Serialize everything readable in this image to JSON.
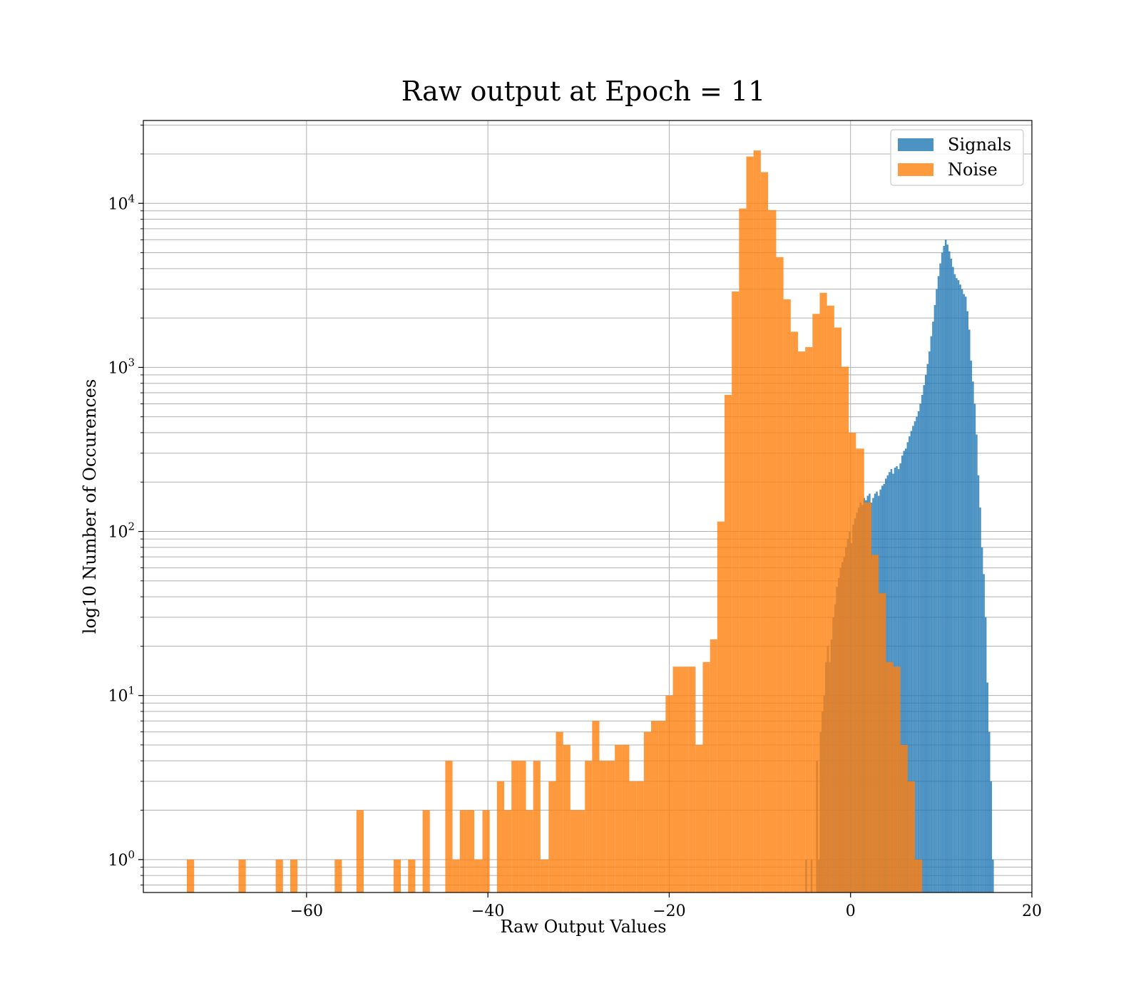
{
  "chart_data": {
    "type": "histogram",
    "title": "Raw output at Epoch = 11",
    "xlabel": "Raw Output Values",
    "ylabel": "log10 Number of Occurences",
    "xlim": [
      -78,
      20
    ],
    "ylim": [
      0.63,
      32000
    ],
    "yscale": "log",
    "grid": true,
    "legend_position": "top-right",
    "x_ticks": [
      {
        "value": -60,
        "label": "−60"
      },
      {
        "value": -40,
        "label": "−40"
      },
      {
        "value": -20,
        "label": "−20"
      },
      {
        "value": 0,
        "label": "0"
      },
      {
        "value": 20,
        "label": "20"
      }
    ],
    "y_ticks": [
      {
        "value": 1,
        "base": "10",
        "exp": "0"
      },
      {
        "value": 10,
        "base": "10",
        "exp": "1"
      },
      {
        "value": 100,
        "base": "10",
        "exp": "2"
      },
      {
        "value": 1000,
        "base": "10",
        "exp": "3"
      },
      {
        "value": 10000,
        "base": "10",
        "exp": "4"
      }
    ],
    "series": [
      {
        "name": "Signals",
        "color": "#1f77b4",
        "opacity": 0.8,
        "bins": [
          [
            -5.0,
            -4.8,
            1
          ],
          [
            -4.8,
            -4.6,
            0
          ],
          [
            -4.6,
            -4.4,
            0
          ],
          [
            -4.4,
            -4.2,
            1
          ],
          [
            -4.2,
            -4.0,
            0
          ],
          [
            -4.0,
            -3.8,
            0
          ],
          [
            -3.8,
            -3.6,
            4
          ],
          [
            -3.6,
            -3.4,
            1
          ],
          [
            -3.4,
            -3.2,
            6
          ],
          [
            -3.2,
            -3.0,
            8
          ],
          [
            -3.0,
            -2.8,
            10
          ],
          [
            -2.8,
            -2.6,
            16
          ],
          [
            -2.6,
            -2.4,
            20
          ],
          [
            -2.4,
            -2.2,
            16
          ],
          [
            -2.2,
            -2.0,
            22
          ],
          [
            -2.0,
            -1.8,
            30
          ],
          [
            -1.8,
            -1.6,
            36
          ],
          [
            -1.6,
            -1.4,
            46
          ],
          [
            -1.4,
            -1.2,
            52
          ],
          [
            -1.2,
            -1.0,
            60
          ],
          [
            -1.0,
            -0.8,
            65
          ],
          [
            -0.8,
            -0.6,
            70
          ],
          [
            -0.6,
            -0.4,
            80
          ],
          [
            -0.4,
            -0.2,
            90
          ],
          [
            -0.2,
            0.0,
            100
          ],
          [
            0.0,
            0.2,
            85
          ],
          [
            0.2,
            0.4,
            110
          ],
          [
            0.4,
            0.6,
            120
          ],
          [
            0.6,
            0.8,
            130
          ],
          [
            0.8,
            1.0,
            140
          ],
          [
            1.0,
            1.2,
            150
          ],
          [
            1.2,
            1.4,
            145
          ],
          [
            1.4,
            1.6,
            160
          ],
          [
            1.6,
            1.8,
            155
          ],
          [
            1.8,
            2.0,
            165
          ],
          [
            2.0,
            2.2,
            170
          ],
          [
            2.2,
            2.4,
            150
          ],
          [
            2.4,
            2.6,
            160
          ],
          [
            2.6,
            2.8,
            170
          ],
          [
            2.8,
            3.0,
            175
          ],
          [
            3.0,
            3.2,
            165
          ],
          [
            3.2,
            3.4,
            180
          ],
          [
            3.4,
            3.6,
            190
          ],
          [
            3.6,
            3.8,
            195
          ],
          [
            3.8,
            4.0,
            210
          ],
          [
            4.0,
            4.2,
            220
          ],
          [
            4.2,
            4.4,
            230
          ],
          [
            4.4,
            4.6,
            240
          ],
          [
            4.6,
            4.8,
            225
          ],
          [
            4.8,
            5.0,
            245
          ],
          [
            5.0,
            5.2,
            250
          ],
          [
            5.2,
            5.4,
            240
          ],
          [
            5.4,
            5.6,
            260
          ],
          [
            5.6,
            5.8,
            290
          ],
          [
            5.8,
            6.0,
            310
          ],
          [
            6.0,
            6.2,
            320
          ],
          [
            6.2,
            6.4,
            350
          ],
          [
            6.4,
            6.6,
            380
          ],
          [
            6.6,
            6.8,
            410
          ],
          [
            6.8,
            7.0,
            440
          ],
          [
            7.0,
            7.2,
            470
          ],
          [
            7.2,
            7.4,
            500
          ],
          [
            7.4,
            7.6,
            540
          ],
          [
            7.6,
            7.8,
            600
          ],
          [
            7.8,
            8.0,
            680
          ],
          [
            8.0,
            8.2,
            780
          ],
          [
            8.2,
            8.4,
            900
          ],
          [
            8.4,
            8.6,
            1050
          ],
          [
            8.6,
            8.8,
            1250
          ],
          [
            8.8,
            9.0,
            1550
          ],
          [
            9.0,
            9.2,
            1900
          ],
          [
            9.2,
            9.4,
            2400
          ],
          [
            9.4,
            9.6,
            3000
          ],
          [
            9.6,
            9.8,
            3600
          ],
          [
            9.8,
            10.0,
            4300
          ],
          [
            10.0,
            10.2,
            5000
          ],
          [
            10.2,
            10.4,
            5500
          ],
          [
            10.4,
            10.6,
            6000
          ],
          [
            10.6,
            10.8,
            5600
          ],
          [
            10.8,
            11.0,
            5100
          ],
          [
            11.0,
            11.2,
            4600
          ],
          [
            11.2,
            11.4,
            4100
          ],
          [
            11.4,
            11.6,
            3700
          ],
          [
            11.6,
            11.8,
            3500
          ],
          [
            11.8,
            12.0,
            3400
          ],
          [
            12.0,
            12.2,
            3200
          ],
          [
            12.2,
            12.4,
            3000
          ],
          [
            12.4,
            12.6,
            2800
          ],
          [
            12.6,
            12.8,
            2700
          ],
          [
            12.8,
            13.0,
            2200
          ],
          [
            13.0,
            13.2,
            1700
          ],
          [
            13.2,
            13.4,
            1100
          ],
          [
            13.4,
            13.6,
            820
          ],
          [
            13.6,
            13.8,
            600
          ],
          [
            13.8,
            14.0,
            390
          ],
          [
            14.0,
            14.2,
            220
          ],
          [
            14.2,
            14.4,
            140
          ],
          [
            14.4,
            14.6,
            80
          ],
          [
            14.6,
            14.8,
            55
          ],
          [
            14.8,
            15.0,
            30
          ],
          [
            15.0,
            15.2,
            12
          ],
          [
            15.2,
            15.4,
            6
          ],
          [
            15.4,
            15.6,
            3
          ],
          [
            15.6,
            15.8,
            1
          ]
        ]
      },
      {
        "name": "Noise",
        "color": "#ff7f0e",
        "opacity": 0.8,
        "bins": [
          [
            -73.2,
            -72.4,
            1
          ],
          [
            -67.5,
            -66.7,
            1
          ],
          [
            -63.4,
            -62.6,
            1
          ],
          [
            -61.8,
            -61.0,
            1
          ],
          [
            -56.9,
            -56.1,
            1
          ],
          [
            -54.5,
            -53.7,
            2
          ],
          [
            -50.4,
            -49.6,
            1
          ],
          [
            -48.8,
            -48.0,
            1
          ],
          [
            -47.2,
            -46.4,
            2
          ],
          [
            -44.7,
            -43.9,
            4
          ],
          [
            -43.9,
            -43.1,
            1
          ],
          [
            -43.1,
            -42.3,
            2
          ],
          [
            -42.3,
            -41.5,
            2
          ],
          [
            -41.5,
            -40.6,
            1
          ],
          [
            -40.6,
            -39.8,
            2
          ],
          [
            -39.0,
            -38.2,
            3
          ],
          [
            -38.2,
            -37.4,
            2
          ],
          [
            -37.4,
            -36.6,
            4
          ],
          [
            -36.6,
            -35.8,
            4
          ],
          [
            -35.8,
            -35.0,
            2
          ],
          [
            -35.0,
            -34.2,
            4
          ],
          [
            -34.2,
            -33.3,
            1
          ],
          [
            -33.3,
            -32.5,
            3
          ],
          [
            -32.5,
            -31.7,
            6
          ],
          [
            -31.7,
            -30.9,
            5
          ],
          [
            -30.9,
            -30.1,
            2
          ],
          [
            -30.1,
            -29.3,
            2
          ],
          [
            -29.3,
            -28.5,
            4
          ],
          [
            -28.5,
            -27.7,
            7
          ],
          [
            -27.7,
            -26.9,
            4
          ],
          [
            -26.9,
            -26.0,
            4
          ],
          [
            -26.0,
            -25.2,
            5
          ],
          [
            -25.2,
            -24.4,
            5
          ],
          [
            -24.4,
            -23.6,
            3
          ],
          [
            -23.6,
            -22.8,
            3
          ],
          [
            -22.8,
            -22.0,
            6
          ],
          [
            -22.0,
            -21.2,
            7
          ],
          [
            -21.2,
            -20.4,
            7
          ],
          [
            -20.4,
            -19.6,
            10
          ],
          [
            -19.6,
            -18.7,
            15
          ],
          [
            -18.7,
            -17.9,
            15
          ],
          [
            -17.9,
            -17.1,
            15
          ],
          [
            -17.1,
            -16.3,
            5
          ],
          [
            -16.3,
            -15.5,
            16
          ],
          [
            -15.5,
            -14.7,
            22
          ],
          [
            -14.7,
            -13.9,
            115
          ],
          [
            -13.9,
            -13.1,
            680
          ],
          [
            -13.1,
            -12.3,
            2900
          ],
          [
            -12.3,
            -11.5,
            9300
          ],
          [
            -11.5,
            -10.7,
            19300
          ],
          [
            -10.7,
            -9.9,
            21000
          ],
          [
            -9.9,
            -9.1,
            15500
          ],
          [
            -9.1,
            -8.2,
            9100
          ],
          [
            -8.2,
            -7.4,
            4700
          ],
          [
            -7.4,
            -6.6,
            2600
          ],
          [
            -6.6,
            -5.8,
            1650
          ],
          [
            -5.8,
            -5.0,
            1250
          ],
          [
            -5.0,
            -4.2,
            1330
          ],
          [
            -4.2,
            -3.4,
            2120
          ],
          [
            -3.4,
            -2.6,
            2850
          ],
          [
            -2.6,
            -1.8,
            2380
          ],
          [
            -1.8,
            -1.0,
            1750
          ],
          [
            -1.0,
            -0.2,
            1010
          ],
          [
            -0.2,
            0.6,
            400
          ],
          [
            0.6,
            1.5,
            320
          ],
          [
            1.5,
            2.3,
            150
          ],
          [
            2.3,
            3.1,
            72
          ],
          [
            3.1,
            3.9,
            42
          ],
          [
            3.9,
            4.7,
            16
          ],
          [
            4.7,
            5.5,
            15
          ],
          [
            5.5,
            6.3,
            5
          ],
          [
            6.3,
            7.1,
            3
          ],
          [
            7.1,
            7.9,
            1
          ]
        ]
      }
    ]
  }
}
